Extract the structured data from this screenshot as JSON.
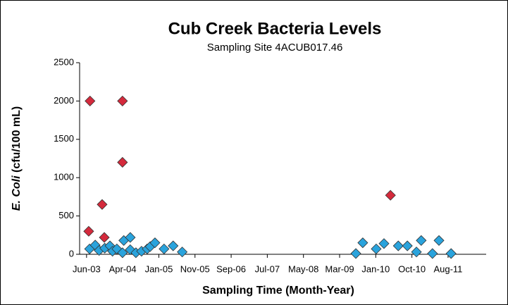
{
  "chart_data": {
    "type": "scatter",
    "title": "Cub Creek Bacteria Levels",
    "subtitle": "Sampling Site 4ACUB017.46",
    "x_label": "Sampling Time (Month-Year)",
    "y_label": [
      "E. Coli",
      "(cfu/100 mL)"
    ],
    "xlim": [
      2003.26,
      2012.65
    ],
    "xticks": [
      {
        "value": 2003.42,
        "label": "Jun-03"
      },
      {
        "value": 2004.255,
        "label": "Apr-04"
      },
      {
        "value": 2005.09,
        "label": "Jan-05"
      },
      {
        "value": 2005.925,
        "label": "Nov-05"
      },
      {
        "value": 2006.76,
        "label": "Sep-06"
      },
      {
        "value": 2007.595,
        "label": "Jul-07"
      },
      {
        "value": 2008.43,
        "label": "May-08"
      },
      {
        "value": 2009.265,
        "label": "Mar-09"
      },
      {
        "value": 2010.1,
        "label": "Jan-10"
      },
      {
        "value": 2010.935,
        "label": "Oct-10"
      },
      {
        "value": 2011.77,
        "label": "Aug-11"
      }
    ],
    "ylim": [
      0,
      2500
    ],
    "yticks": [
      0,
      500,
      1000,
      1500,
      2000,
      2500
    ],
    "grid": false,
    "series": [
      {
        "color": "#d42a3c",
        "x": [
          2003.47,
          2003.5,
          2003.78,
          2003.83,
          2004.25,
          2004.25,
          2010.44
        ],
        "values": [
          300,
          2000,
          650,
          220,
          2000,
          1200,
          770
        ]
      },
      {
        "color": "#2aa3dc",
        "x": [
          2003.49,
          2003.62,
          2003.71,
          2003.84,
          2003.96,
          2004.02,
          2004.12,
          2004.28,
          2004.25,
          2004.43,
          2004.43,
          2004.56,
          2004.69,
          2004.82,
          2004.89,
          2005.0,
          2005.21,
          2005.42,
          2005.63,
          2009.64,
          2009.8,
          2010.11,
          2010.29,
          2010.62,
          2010.83,
          2011.04,
          2011.15,
          2011.41,
          2011.56,
          2011.84
        ],
        "values": [
          70,
          120,
          50,
          80,
          110,
          40,
          70,
          180,
          20,
          220,
          60,
          20,
          40,
          70,
          100,
          150,
          70,
          110,
          30,
          10,
          150,
          70,
          140,
          110,
          110,
          30,
          180,
          10,
          180,
          10
        ]
      }
    ]
  }
}
